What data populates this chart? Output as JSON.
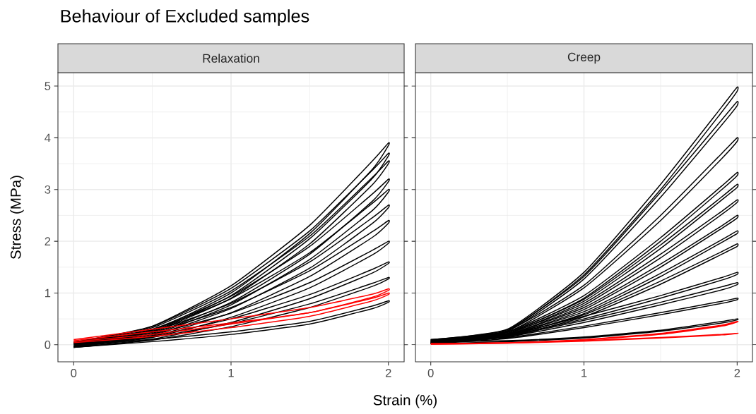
{
  "chart_data": [
    {
      "type": "line",
      "title": "Behaviour of Excluded samples",
      "subtitle": "Relaxation",
      "xlabel": "Strain (%)",
      "ylabel": "Stress (MPa)",
      "xlim": [
        -0.1,
        2.1
      ],
      "ylim": [
        -0.33,
        5.26
      ],
      "xticks": [
        0,
        1,
        2
      ],
      "yticks": [
        0,
        1,
        2,
        3,
        4,
        5
      ],
      "grid": true,
      "marker": "none",
      "x": [
        0,
        0.5,
        1,
        1.5,
        1.9,
        2,
        2,
        1.9,
        1.5,
        1,
        0.5,
        0
      ],
      "series": [
        {
          "color": "#000000",
          "values": [
            0.05,
            0.36,
            1.14,
            2.31,
            3.56,
            3.9,
            3.85,
            3.4,
            2.15,
            1.0,
            0.28,
            -0.02
          ]
        },
        {
          "color": "#000000",
          "values": [
            0.05,
            0.35,
            1.09,
            2.2,
            3.38,
            3.7,
            3.65,
            3.22,
            2.05,
            0.95,
            0.26,
            -0.02
          ]
        },
        {
          "color": "#000000",
          "values": [
            0.04,
            0.33,
            1.04,
            2.1,
            3.24,
            3.55,
            3.5,
            3.1,
            1.95,
            0.9,
            0.25,
            -0.03
          ]
        },
        {
          "color": "#000000",
          "values": [
            0.04,
            0.3,
            0.94,
            1.9,
            2.92,
            3.2,
            3.15,
            2.78,
            1.75,
            0.82,
            0.22,
            -0.03
          ]
        },
        {
          "color": "#000000",
          "values": [
            0.03,
            0.29,
            0.89,
            1.78,
            2.74,
            3.0,
            2.95,
            2.6,
            1.65,
            0.77,
            0.2,
            -0.03
          ]
        },
        {
          "color": "#000000",
          "values": [
            0.03,
            0.26,
            0.8,
            1.6,
            2.46,
            2.7,
            2.65,
            2.35,
            1.48,
            0.7,
            0.18,
            -0.04
          ]
        },
        {
          "color": "#000000",
          "values": [
            0.02,
            0.24,
            0.72,
            1.43,
            2.19,
            2.4,
            2.35,
            2.08,
            1.32,
            0.62,
            0.16,
            -0.04
          ]
        },
        {
          "color": "#000000",
          "values": [
            0.02,
            0.21,
            0.61,
            1.2,
            1.83,
            2.0,
            1.96,
            1.74,
            1.1,
            0.53,
            0.14,
            -0.04
          ]
        },
        {
          "color": "#000000",
          "values": [
            0.01,
            0.17,
            0.5,
            0.97,
            1.46,
            1.6,
            1.57,
            1.39,
            0.89,
            0.43,
            0.11,
            -0.05
          ]
        },
        {
          "color": "#000000",
          "values": [
            0.01,
            0.15,
            0.41,
            0.79,
            1.19,
            1.3,
            1.27,
            1.13,
            0.72,
            0.35,
            0.09,
            -0.05
          ]
        },
        {
          "color": "#000000",
          "values": [
            0.0,
            0.1,
            0.25,
            0.45,
            0.75,
            0.85,
            0.82,
            0.7,
            0.4,
            0.2,
            0.06,
            -0.05
          ]
        },
        {
          "color": "#ff0000",
          "values": [
            0.1,
            0.3,
            0.5,
            0.72,
            0.98,
            1.08,
            1.05,
            0.92,
            0.62,
            0.4,
            0.2,
            0.06
          ]
        },
        {
          "color": "#ff0000",
          "values": [
            0.08,
            0.25,
            0.42,
            0.62,
            0.9,
            1.0,
            0.97,
            0.85,
            0.55,
            0.33,
            0.16,
            0.04
          ]
        }
      ]
    },
    {
      "type": "line",
      "subtitle": "Creep",
      "xlim": [
        -0.1,
        2.1
      ],
      "ylim": [
        -0.33,
        5.26
      ],
      "xticks": [
        0,
        1,
        2
      ],
      "yticks": [
        0,
        1,
        2,
        3,
        4,
        5
      ],
      "tick_labels": "x",
      "grid": true,
      "marker": "none",
      "x": [
        0,
        0.5,
        1,
        1.5,
        1.9,
        2,
        2,
        1.9,
        1.5,
        1,
        0.5,
        0
      ],
      "series": [
        {
          "color": "#000000",
          "values": [
            0.1,
            0.3,
            1.4,
            3.1,
            4.6,
            4.98,
            4.9,
            4.5,
            3.0,
            1.35,
            0.27,
            0.05
          ]
        },
        {
          "color": "#000000",
          "values": [
            0.1,
            0.29,
            1.32,
            2.95,
            4.35,
            4.7,
            4.62,
            4.25,
            2.85,
            1.27,
            0.26,
            0.05
          ]
        },
        {
          "color": "#000000",
          "values": [
            0.09,
            0.27,
            1.15,
            2.5,
            3.7,
            4.0,
            3.93,
            3.6,
            2.4,
            1.1,
            0.24,
            0.04
          ]
        },
        {
          "color": "#000000",
          "values": [
            0.09,
            0.25,
            0.95,
            2.07,
            3.07,
            3.33,
            3.27,
            3.0,
            2.0,
            0.9,
            0.22,
            0.04
          ]
        },
        {
          "color": "#000000",
          "values": [
            0.08,
            0.24,
            0.88,
            1.93,
            2.86,
            3.1,
            3.04,
            2.8,
            1.86,
            0.84,
            0.21,
            0.03
          ]
        },
        {
          "color": "#000000",
          "values": [
            0.08,
            0.22,
            0.8,
            1.75,
            2.58,
            2.8,
            2.75,
            2.52,
            1.68,
            0.76,
            0.2,
            0.03
          ]
        },
        {
          "color": "#000000",
          "values": [
            0.07,
            0.2,
            0.72,
            1.56,
            2.3,
            2.5,
            2.45,
            2.25,
            1.5,
            0.68,
            0.18,
            0.02
          ]
        },
        {
          "color": "#000000",
          "values": [
            0.07,
            0.19,
            0.64,
            1.38,
            2.03,
            2.2,
            2.15,
            1.98,
            1.32,
            0.6,
            0.17,
            0.02
          ]
        },
        {
          "color": "#000000",
          "values": [
            0.06,
            0.18,
            0.58,
            1.23,
            1.8,
            1.95,
            1.9,
            1.75,
            1.17,
            0.54,
            0.16,
            0.02
          ]
        },
        {
          "color": "#000000",
          "values": [
            0.06,
            0.2,
            0.55,
            0.95,
            1.3,
            1.4,
            1.36,
            1.25,
            0.9,
            0.5,
            0.17,
            0.02
          ]
        },
        {
          "color": "#000000",
          "values": [
            0.05,
            0.17,
            0.47,
            0.82,
            1.12,
            1.2,
            1.16,
            1.06,
            0.77,
            0.43,
            0.15,
            0.02
          ]
        },
        {
          "color": "#000000",
          "values": [
            0.05,
            0.14,
            0.36,
            0.62,
            0.84,
            0.9,
            0.87,
            0.8,
            0.58,
            0.33,
            0.12,
            0.02
          ]
        },
        {
          "color": "#000000",
          "values": [
            0.05,
            0.08,
            0.15,
            0.28,
            0.45,
            0.5,
            0.48,
            0.42,
            0.26,
            0.13,
            0.06,
            0.02
          ]
        },
        {
          "color": "#ff0000",
          "values": [
            0.02,
            0.04,
            0.1,
            0.22,
            0.38,
            0.45,
            0.44,
            0.36,
            0.2,
            0.09,
            0.03,
            0.01
          ]
        },
        {
          "color": "#ff0000",
          "values": [
            0.02,
            0.04,
            0.08,
            0.14,
            0.2,
            0.22,
            0.22,
            0.19,
            0.13,
            0.07,
            0.03,
            0.01
          ]
        }
      ]
    }
  ]
}
